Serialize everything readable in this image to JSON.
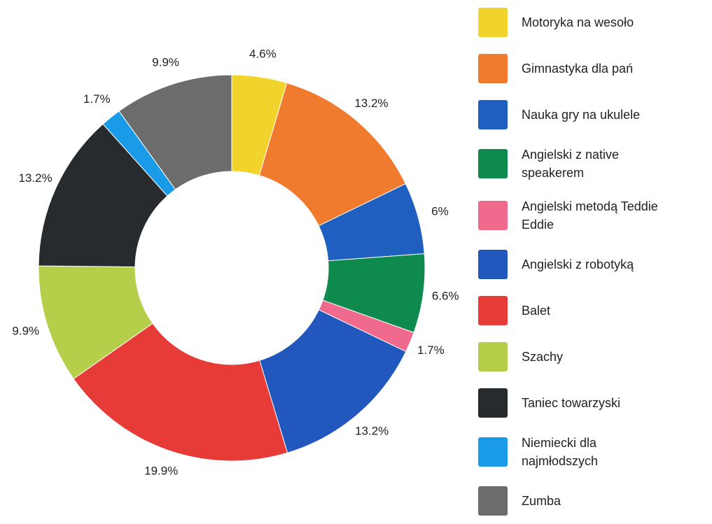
{
  "chart_data": {
    "type": "donut",
    "categories": [
      "Motoryka na wesoło",
      "Gimnastyka dla pań",
      "Nauka gry na ukulele",
      "Angielski z native speakerem",
      "Angielski metodą Teddie Eddie",
      "Angielski z robotyką",
      "Balet",
      "Szachy",
      "Taniec towarzyski",
      "Niemiecki dla najmłodszych",
      "Zumba"
    ],
    "values": [
      4.6,
      13.2,
      6,
      6.6,
      1.7,
      13.2,
      19.9,
      9.9,
      13.2,
      1.7,
      9.9
    ],
    "value_labels": [
      "4.6%",
      "13.2%",
      "6%",
      "6.6%",
      "1.7%",
      "13.2%",
      "19.9%",
      "9.9%",
      "13.2%",
      "1.7%",
      "9.9%"
    ],
    "colors": [
      "#f2d32c",
      "#f07a2e",
      "#1f5fbf",
      "#0f8a4e",
      "#f06a8e",
      "#2257bd",
      "#e63b36",
      "#b6cf4b",
      "#272b2e",
      "#1a9be8",
      "#6c6c6c"
    ],
    "legend": "right"
  }
}
